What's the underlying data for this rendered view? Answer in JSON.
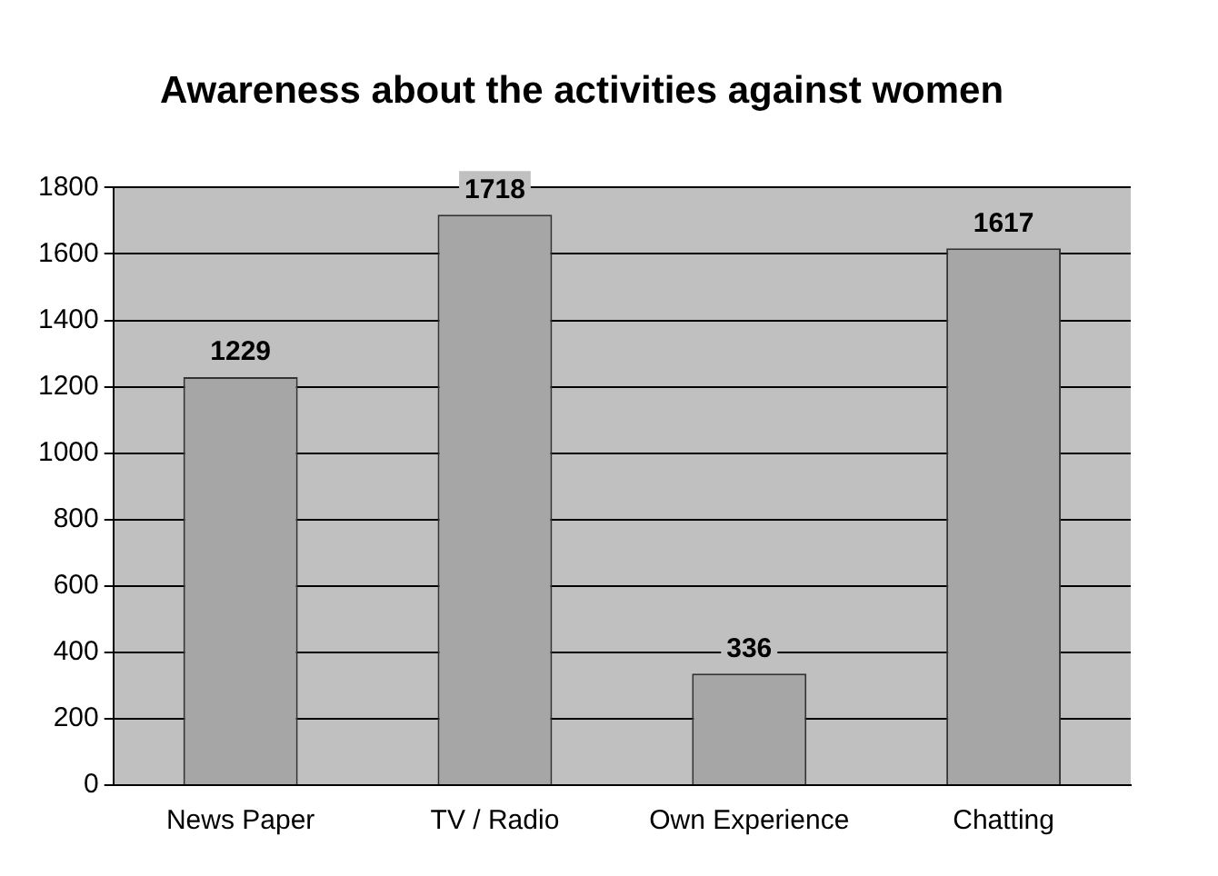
{
  "chart_data": {
    "type": "bar",
    "title": "Awareness about the activities against women",
    "categories": [
      "News Paper",
      "TV / Radio",
      "Own Experience",
      "Chatting"
    ],
    "values": [
      1229,
      1718,
      336,
      1617
    ],
    "color": "#a6a6a6",
    "ylim": [
      0,
      1800
    ],
    "yticks": [
      0,
      200,
      400,
      600,
      800,
      1000,
      1200,
      1400,
      1600,
      1800
    ],
    "grid": "y",
    "data_labels": true
  }
}
